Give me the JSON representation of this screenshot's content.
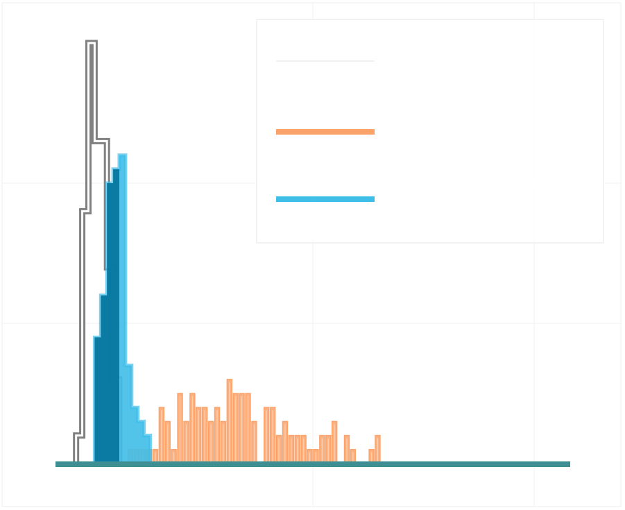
{
  "chart_data": {
    "type": "histogram",
    "title": "",
    "xlabel": "",
    "ylabel": "",
    "xlim": [
      0,
      100
    ],
    "ylim": [
      0,
      30
    ],
    "bin_width": 1.2,
    "grid": true,
    "legend": {
      "placement": "top-right",
      "entries": [
        {
          "series_index": 0,
          "name": ""
        },
        {
          "series_index": 1,
          "name": ""
        },
        {
          "series_index": 2,
          "name": ""
        }
      ]
    },
    "series": [
      {
        "style": "step",
        "color": "#808080",
        "x0": 4.0,
        "counts": [
          2,
          18,
          30,
          23,
          23,
          14,
          6
        ]
      },
      {
        "style": "filled-bar",
        "color": "#fca36b",
        "x0": 14.0,
        "counts": [
          1,
          1,
          1,
          1,
          1,
          4,
          3,
          1,
          5,
          3,
          5,
          4,
          4,
          3,
          4,
          3,
          6,
          5,
          5,
          5,
          3,
          0,
          4,
          4,
          2,
          3,
          2,
          2,
          2,
          1,
          1,
          2,
          2,
          3,
          0,
          2,
          1,
          0,
          0,
          1,
          2
        ]
      },
      {
        "style": "filled-step",
        "color": "#3fbee8",
        "x0": 7.6,
        "counts": [
          9,
          12,
          20,
          21,
          22,
          7,
          4,
          3,
          2
        ]
      }
    ]
  }
}
